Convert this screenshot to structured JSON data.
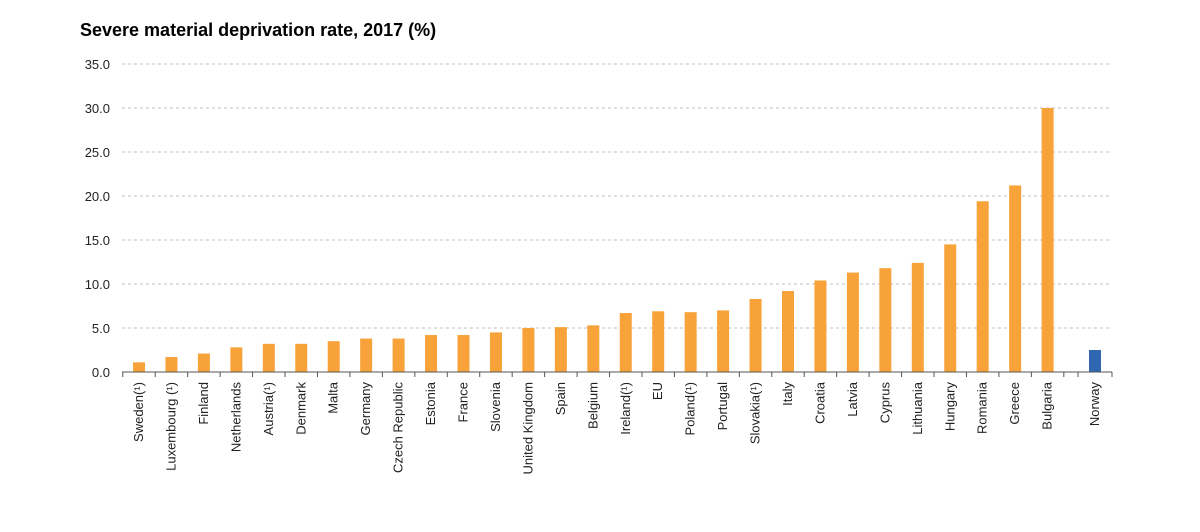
{
  "chart_data": {
    "type": "bar",
    "title": "Severe material deprivation rate, 2017 (%)",
    "xlabel": "",
    "ylabel": "",
    "ylim": [
      0,
      35
    ],
    "yticks": [
      "0.0",
      "5.0",
      "10.0",
      "15.0",
      "20.0",
      "25.0",
      "30.0",
      "35.0"
    ],
    "grid": true,
    "categories": [
      "Sweden(¹)",
      "Luxembourg (¹)",
      "Finland",
      "Netherlands",
      "Austria(¹)",
      "Denmark",
      "Malta",
      "Germany",
      "Czech Republic",
      "Estonia",
      "France",
      "Slovenia",
      "United Kingdom",
      "Spain",
      "Belgium",
      "Ireland(¹)",
      "EU",
      "Poland(¹)",
      "Portugal",
      "Slovakia(¹)",
      "Italy",
      "Croatia",
      "Latvia",
      "Cyprus",
      "Lithuania",
      "Hungary",
      "Romania",
      "Greece",
      "Bulgaria",
      "Norway"
    ],
    "values": [
      1.1,
      1.7,
      2.1,
      2.8,
      3.2,
      3.2,
      3.5,
      3.8,
      3.8,
      4.2,
      4.2,
      4.5,
      5.0,
      5.1,
      5.3,
      6.7,
      6.9,
      6.8,
      7.0,
      8.3,
      9.2,
      10.4,
      11.3,
      11.8,
      12.4,
      14.5,
      19.4,
      21.2,
      30.0,
      2.5
    ],
    "colors": {
      "eu_bar": "#f8a23a",
      "other_bar": "#2f67b1",
      "grid": "#bfbfbf",
      "axis": "#555555"
    },
    "highlight_index": 29
  }
}
